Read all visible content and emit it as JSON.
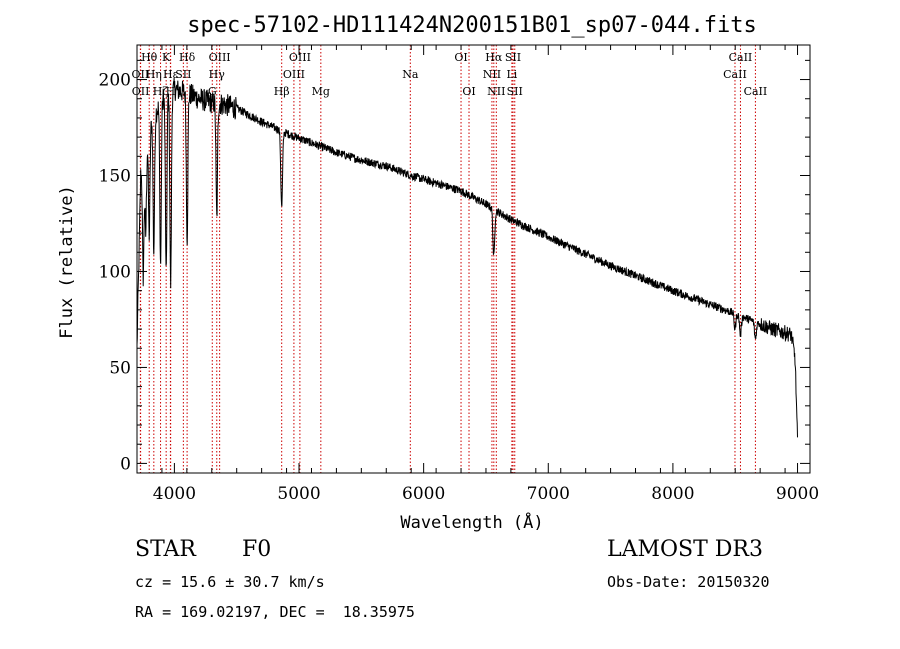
{
  "chart_data": {
    "type": "line",
    "title": "spec-57102-HD111424N200151B01_sp07-044.fits",
    "xlabel": "Wavelength (Å)",
    "ylabel": "Flux (relative)",
    "xlim": [
      3700,
      9100
    ],
    "ylim": [
      -5,
      218
    ],
    "xticks": [
      4000,
      5000,
      6000,
      7000,
      8000,
      9000
    ],
    "yticks": [
      0,
      50,
      100,
      150,
      200
    ],
    "continuum": [
      [
        3700,
        60
      ],
      [
        3730,
        150
      ],
      [
        3800,
        175
      ],
      [
        3900,
        190
      ],
      [
        4000,
        195
      ],
      [
        4100,
        193
      ],
      [
        4200,
        190
      ],
      [
        4300,
        188
      ],
      [
        4400,
        187
      ],
      [
        4500,
        185
      ],
      [
        4700,
        178
      ],
      [
        4900,
        172
      ],
      [
        5100,
        167
      ],
      [
        5300,
        162
      ],
      [
        5500,
        158
      ],
      [
        5700,
        155
      ],
      [
        5900,
        150
      ],
      [
        6100,
        146
      ],
      [
        6300,
        142
      ],
      [
        6500,
        135
      ],
      [
        6700,
        127
      ],
      [
        7000,
        118
      ],
      [
        7500,
        103
      ],
      [
        8000,
        90
      ],
      [
        8500,
        78
      ],
      [
        8800,
        70
      ],
      [
        8950,
        67
      ],
      [
        8980,
        55
      ],
      [
        9000,
        12
      ]
    ],
    "absorption_features": [
      {
        "wavelength": 3750,
        "depth": 60
      },
      {
        "wavelength": 3770,
        "depth": 45
      },
      {
        "wavelength": 3798,
        "depth": 55
      },
      {
        "wavelength": 3835,
        "depth": 70
      },
      {
        "wavelength": 3889,
        "depth": 85
      },
      {
        "wavelength": 3934,
        "depth": 95
      },
      {
        "wavelength": 3970,
        "depth": 100
      },
      {
        "wavelength": 4102,
        "depth": 75
      },
      {
        "wavelength": 4340,
        "depth": 60
      },
      {
        "wavelength": 4861,
        "depth": 40
      },
      {
        "wavelength": 6563,
        "depth": 25
      },
      {
        "wavelength": 8498,
        "depth": 8
      },
      {
        "wavelength": 8542,
        "depth": 10
      },
      {
        "wavelength": 8662,
        "depth": 9
      }
    ],
    "spectral_lines": [
      {
        "label": "Hθ",
        "wavelength": 3798,
        "row": 1
      },
      {
        "label": "OII",
        "wavelength": 3727,
        "row": 2
      },
      {
        "label": "OII",
        "wavelength": 3729,
        "row": 3
      },
      {
        "label": "Hη",
        "wavelength": 3835,
        "row": 2
      },
      {
        "label": "Hζ",
        "wavelength": 3889,
        "row": 3
      },
      {
        "label": "K",
        "wavelength": 3934,
        "row": 1
      },
      {
        "label": "Hε",
        "wavelength": 3970,
        "row": 2
      },
      {
        "label": "H",
        "wavelength": 3968,
        "row": 3
      },
      {
        "label": "Hδ",
        "wavelength": 4102,
        "row": 1
      },
      {
        "label": "SII",
        "wavelength": 4072,
        "row": 2
      },
      {
        "label": "OIII",
        "wavelength": 4363,
        "row": 1
      },
      {
        "label": "Hγ",
        "wavelength": 4340,
        "row": 2
      },
      {
        "label": "G",
        "wavelength": 4304,
        "row": 3
      },
      {
        "label": "OIII",
        "wavelength": 5007,
        "row": 1
      },
      {
        "label": "OIII",
        "wavelength": 4959,
        "row": 2
      },
      {
        "label": "Hβ",
        "wavelength": 4861,
        "row": 3
      },
      {
        "label": "Mg",
        "wavelength": 5175,
        "row": 3
      },
      {
        "label": "Na",
        "wavelength": 5893,
        "row": 2
      },
      {
        "label": "OI",
        "wavelength": 6300,
        "row": 1
      },
      {
        "label": "OI",
        "wavelength": 6364,
        "row": 3
      },
      {
        "label": "Hα",
        "wavelength": 6563,
        "row": 1
      },
      {
        "label": "NII",
        "wavelength": 6548,
        "row": 2
      },
      {
        "label": "NII",
        "wavelength": 6583,
        "row": 3
      },
      {
        "label": "SII",
        "wavelength": 6717,
        "row": 1
      },
      {
        "label": "Li",
        "wavelength": 6708,
        "row": 2
      },
      {
        "label": "SII",
        "wavelength": 6731,
        "row": 3
      },
      {
        "label": "CaII",
        "wavelength": 8542,
        "row": 1
      },
      {
        "label": "CaII",
        "wavelength": 8498,
        "row": 2
      },
      {
        "label": "CaII",
        "wavelength": 8662,
        "row": 3
      }
    ]
  },
  "info": {
    "object_class": "STAR",
    "subclass": "F0",
    "survey": "LAMOST DR3",
    "cz": "cz = 15.6 ± 30.7 km/s",
    "obs_date": "Obs-Date: 20150320",
    "coords": "RA = 169.02197, DEC =  18.35975"
  },
  "colors": {
    "line_marker": "#cc0000",
    "spectrum": "#000000",
    "background": "#ffffff"
  }
}
